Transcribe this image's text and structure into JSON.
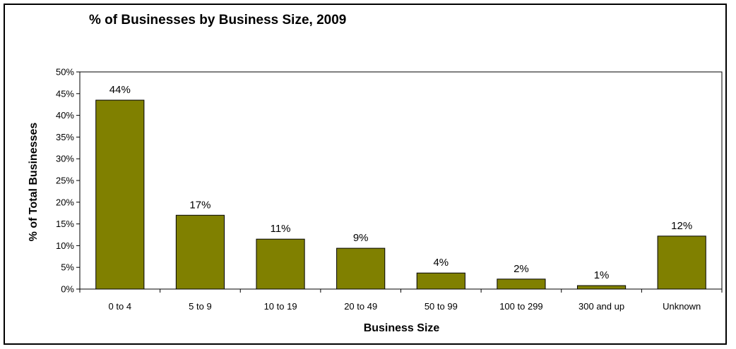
{
  "chart_data": {
    "type": "bar",
    "title": "% of Businesses by Business Size, 2009",
    "xlabel": "Business Size",
    "ylabel": "% of Total Businesses",
    "categories": [
      "0 to 4",
      "5 to 9",
      "10 to 19",
      "20 to 49",
      "50 to 99",
      "100 to 299",
      "300 and up",
      "Unknown"
    ],
    "values": [
      43.5,
      17.0,
      11.5,
      9.4,
      3.7,
      2.3,
      0.8,
      12.2
    ],
    "data_labels": [
      "44%",
      "17%",
      "11%",
      "9%",
      "4%",
      "2%",
      "1%",
      "12%"
    ],
    "ylim": [
      0,
      50
    ],
    "yticks": [
      0,
      5,
      10,
      15,
      20,
      25,
      30,
      35,
      40,
      45,
      50
    ],
    "ytick_labels": [
      "0%",
      "5%",
      "10%",
      "15%",
      "20%",
      "25%",
      "30%",
      "35%",
      "40%",
      "45%",
      "50%"
    ],
    "bar_color": "#808000",
    "grid": false,
    "legend": "none"
  }
}
